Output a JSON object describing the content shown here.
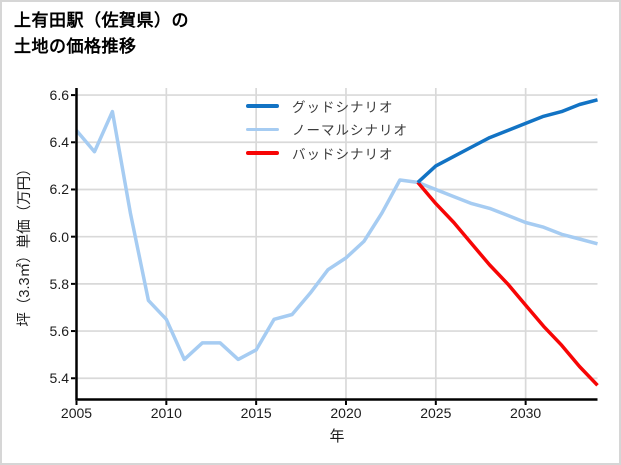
{
  "header": {
    "title_display": "上有田駅（佐賀県）の\n土地の価格推移"
  },
  "chart_data": {
    "type": "line",
    "title": "上有田駅（佐賀県）の土地の価格推移",
    "xlabel": "年",
    "ylabel": "坪（3.3㎡）単価（万円）",
    "xlim": [
      2005,
      2034
    ],
    "ylim": [
      5.31,
      6.63
    ],
    "xticks": [
      2005,
      2010,
      2015,
      2020,
      2025,
      2030
    ],
    "ytick_labels": [
      "5.4",
      "5.6",
      "5.8",
      "6.0",
      "6.2",
      "6.4",
      "6.6"
    ],
    "grid": true,
    "legend": {
      "position": "upper-center-inside",
      "entries": [
        "グッドシナリオ",
        "ノーマルシナリオ",
        "バッドシナリオ"
      ]
    },
    "history": {
      "color": "#a6ccf2",
      "x": [
        2005,
        2006,
        2007,
        2008,
        2009,
        2010,
        2011,
        2012,
        2013,
        2014,
        2015,
        2016,
        2017,
        2018,
        2019,
        2020,
        2021,
        2022,
        2023,
        2024
      ],
      "values": [
        6.45,
        6.36,
        6.53,
        6.1,
        5.73,
        5.65,
        5.48,
        5.55,
        5.55,
        5.48,
        5.52,
        5.65,
        5.67,
        5.76,
        5.86,
        5.91,
        5.98,
        6.1,
        6.24,
        6.23
      ]
    },
    "series": [
      {
        "name": "グッドシナリオ",
        "color": "#1273c4",
        "x": [
          2024,
          2025,
          2026,
          2027,
          2028,
          2029,
          2030,
          2031,
          2032,
          2033,
          2034
        ],
        "values": [
          6.23,
          6.3,
          6.34,
          6.38,
          6.42,
          6.45,
          6.48,
          6.51,
          6.53,
          6.56,
          6.58
        ]
      },
      {
        "name": "ノーマルシナリオ",
        "color": "#a6ccf2",
        "x": [
          2024,
          2025,
          2026,
          2027,
          2028,
          2029,
          2030,
          2031,
          2032,
          2033,
          2034
        ],
        "values": [
          6.23,
          6.2,
          6.17,
          6.14,
          6.12,
          6.09,
          6.06,
          6.04,
          6.01,
          5.99,
          5.97
        ]
      },
      {
        "name": "バッドシナリオ",
        "color": "#f70505",
        "x": [
          2024,
          2025,
          2026,
          2027,
          2028,
          2029,
          2030,
          2031,
          2032,
          2033,
          2034
        ],
        "values": [
          6.23,
          6.14,
          6.06,
          5.97,
          5.88,
          5.8,
          5.71,
          5.62,
          5.54,
          5.45,
          5.37
        ]
      }
    ],
    "colors": {
      "grid": "#d9d9d9",
      "axis": "#000000",
      "tick_label": "#1c1c1c",
      "background": "#ffffff",
      "frame_border": "#d6d6d6"
    }
  }
}
